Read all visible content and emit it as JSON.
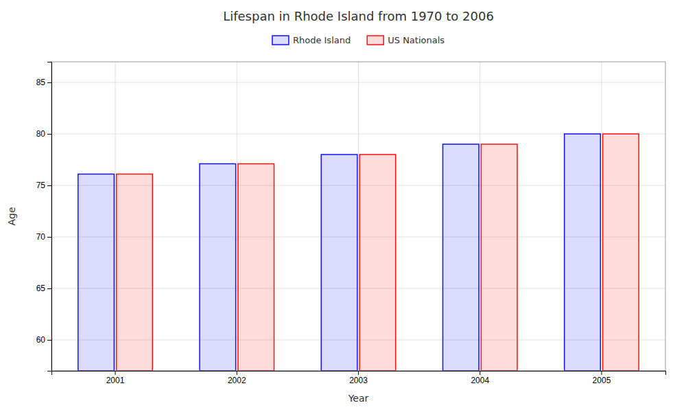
{
  "chart_data": {
    "type": "bar",
    "title": "Lifespan in Rhode Island from 1970 to 2006",
    "x_label": "Year",
    "y_label": "Age",
    "categories": [
      "2001",
      "2002",
      "2003",
      "2004",
      "2005"
    ],
    "series": [
      {
        "name": "Rhode Island",
        "color": "#1111ff",
        "values": [
          76.1,
          77.1,
          78.0,
          79.0,
          80.0
        ]
      },
      {
        "name": "US Nationals",
        "color": "#ff1111",
        "values": [
          76.1,
          77.1,
          78.0,
          79.0,
          80.0
        ]
      }
    ],
    "ylim": [
      57,
      87
    ],
    "yticks": [
      60,
      65,
      70,
      75,
      80,
      85
    ],
    "grid": true,
    "legend": "top"
  }
}
